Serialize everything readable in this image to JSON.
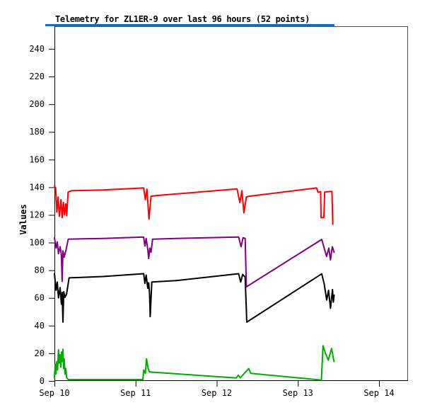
{
  "page": {
    "background": "#ffffff"
  },
  "header": {
    "title": "Telemetry for ZL1ER-9 over last 96 hours (52 points)",
    "title_underline_color": "#1569c7"
  },
  "chart_data": {
    "type": "line",
    "title": "Telemetry for ZL1ER-9 over last 96 hours (52 points)",
    "ylabel": "Values",
    "xlabel": "",
    "grid": false,
    "legend": "none",
    "point_count_label": "52 points",
    "frame_colors": {
      "axis": "#000000",
      "frame": "#4d4d4d"
    },
    "x_axis": {
      "unit": "days-since-Sep-10",
      "xlim_days": [
        0,
        4.357
      ],
      "ticks": [
        {
          "t": 0,
          "label": "Sep 10"
        },
        {
          "t": 1,
          "label": "Sep 11"
        },
        {
          "t": 2,
          "label": "Sep 12"
        },
        {
          "t": 3,
          "label": "Sep 13"
        },
        {
          "t": 4,
          "label": "Sep 14"
        }
      ]
    },
    "y_axis": {
      "range": [
        0,
        256.4
      ],
      "ticks": [
        0,
        20,
        40,
        60,
        80,
        100,
        120,
        140,
        160,
        180,
        200,
        220,
        240
      ]
    },
    "series": [
      {
        "name": "black",
        "color": "#000000",
        "points": [
          [
            0,
            77.5
          ],
          [
            0.02,
            65.5
          ],
          [
            0.035,
            71.5
          ],
          [
            0.05,
            60
          ],
          [
            0.07,
            67.5
          ],
          [
            0.085,
            55.5
          ],
          [
            0.095,
            64
          ],
          [
            0.105,
            42.5
          ],
          [
            0.115,
            64.5
          ],
          [
            0.13,
            60.5
          ],
          [
            0.15,
            63
          ],
          [
            0.18,
            74.5
          ],
          [
            0.6,
            75.5
          ],
          [
            1.1,
            77.5
          ],
          [
            1.115,
            70.5
          ],
          [
            1.13,
            76.5
          ],
          [
            1.15,
            67
          ],
          [
            1.162,
            71
          ],
          [
            1.172,
            63
          ],
          [
            1.18,
            46.5
          ],
          [
            1.2,
            71.5
          ],
          [
            1.5,
            72.5
          ],
          [
            2.27,
            77.5
          ],
          [
            2.295,
            71.5
          ],
          [
            2.32,
            77
          ],
          [
            2.35,
            75
          ],
          [
            2.37,
            42.5
          ],
          [
            3.294,
            77.4
          ],
          [
            3.325,
            70
          ],
          [
            3.355,
            58.5
          ],
          [
            3.378,
            65.5
          ],
          [
            3.402,
            52.5
          ],
          [
            3.427,
            66
          ],
          [
            3.437,
            57
          ],
          [
            3.447,
            62
          ]
        ]
      },
      {
        "name": "purple",
        "color": "#800080",
        "points": [
          [
            0,
            103.5
          ],
          [
            0.02,
            96
          ],
          [
            0.035,
            100.5
          ],
          [
            0.05,
            92
          ],
          [
            0.07,
            97
          ],
          [
            0.085,
            91
          ],
          [
            0.095,
            72
          ],
          [
            0.105,
            94
          ],
          [
            0.12,
            89.5
          ],
          [
            0.14,
            94
          ],
          [
            0.17,
            102.5
          ],
          [
            0.6,
            103
          ],
          [
            1.1,
            104
          ],
          [
            1.115,
            97.5
          ],
          [
            1.13,
            103
          ],
          [
            1.15,
            95
          ],
          [
            1.162,
            88.5
          ],
          [
            1.175,
            96
          ],
          [
            1.19,
            93
          ],
          [
            1.21,
            102.5
          ],
          [
            1.5,
            103
          ],
          [
            2.27,
            104
          ],
          [
            2.3,
            97
          ],
          [
            2.325,
            103.5
          ],
          [
            2.35,
            103
          ],
          [
            2.365,
            68
          ],
          [
            3.294,
            102.3
          ],
          [
            3.353,
            90
          ],
          [
            3.381,
            96
          ],
          [
            3.401,
            87.5
          ],
          [
            3.425,
            97
          ],
          [
            3.447,
            93
          ]
        ]
      },
      {
        "name": "red",
        "color": "#ff0000",
        "points": [
          [
            0,
            141
          ],
          [
            0.015,
            139.5
          ],
          [
            0.03,
            122
          ],
          [
            0.045,
            133
          ],
          [
            0.06,
            119
          ],
          [
            0.08,
            131
          ],
          [
            0.095,
            118
          ],
          [
            0.11,
            129
          ],
          [
            0.125,
            120
          ],
          [
            0.14,
            128
          ],
          [
            0.152,
            119.5
          ],
          [
            0.168,
            136.5
          ],
          [
            0.21,
            137.5
          ],
          [
            0.6,
            138
          ],
          [
            1.1,
            139.5
          ],
          [
            1.12,
            131
          ],
          [
            1.14,
            138.5
          ],
          [
            1.165,
            117
          ],
          [
            1.19,
            133.5
          ],
          [
            1.26,
            134
          ],
          [
            2.25,
            138.8
          ],
          [
            2.285,
            129
          ],
          [
            2.31,
            137.5
          ],
          [
            2.335,
            121.5
          ],
          [
            2.365,
            133
          ],
          [
            2.4,
            133.5
          ],
          [
            3.23,
            139.5
          ],
          [
            3.25,
            136.3
          ],
          [
            3.28,
            136.8
          ],
          [
            3.285,
            118
          ],
          [
            3.32,
            118
          ],
          [
            3.33,
            136.5
          ],
          [
            3.42,
            137
          ],
          [
            3.43,
            113.3
          ]
        ]
      },
      {
        "name": "green",
        "color": "#00aa00",
        "points": [
          [
            0,
            2
          ],
          [
            0.01,
            12
          ],
          [
            0.018,
            5
          ],
          [
            0.028,
            14
          ],
          [
            0.038,
            8
          ],
          [
            0.05,
            22.5
          ],
          [
            0.058,
            13
          ],
          [
            0.068,
            19
          ],
          [
            0.078,
            10
          ],
          [
            0.088,
            21
          ],
          [
            0.098,
            14
          ],
          [
            0.105,
            23
          ],
          [
            0.112,
            9
          ],
          [
            0.12,
            16
          ],
          [
            0.13,
            5
          ],
          [
            0.14,
            9
          ],
          [
            0.15,
            2.5
          ],
          [
            0.17,
            1
          ],
          [
            1.09,
            1
          ],
          [
            1.1,
            8
          ],
          [
            1.12,
            5.5
          ],
          [
            1.135,
            16
          ],
          [
            1.155,
            9
          ],
          [
            1.17,
            6.5
          ],
          [
            2.24,
            2.2
          ],
          [
            2.265,
            4.2
          ],
          [
            2.29,
            2.3
          ],
          [
            2.395,
            9
          ],
          [
            2.42,
            5.5
          ],
          [
            3.28,
            0.7
          ],
          [
            3.29,
            0.6
          ],
          [
            3.31,
            25.5
          ],
          [
            3.34,
            20
          ],
          [
            3.375,
            15
          ],
          [
            3.415,
            23.5
          ],
          [
            3.445,
            14
          ]
        ]
      }
    ]
  }
}
